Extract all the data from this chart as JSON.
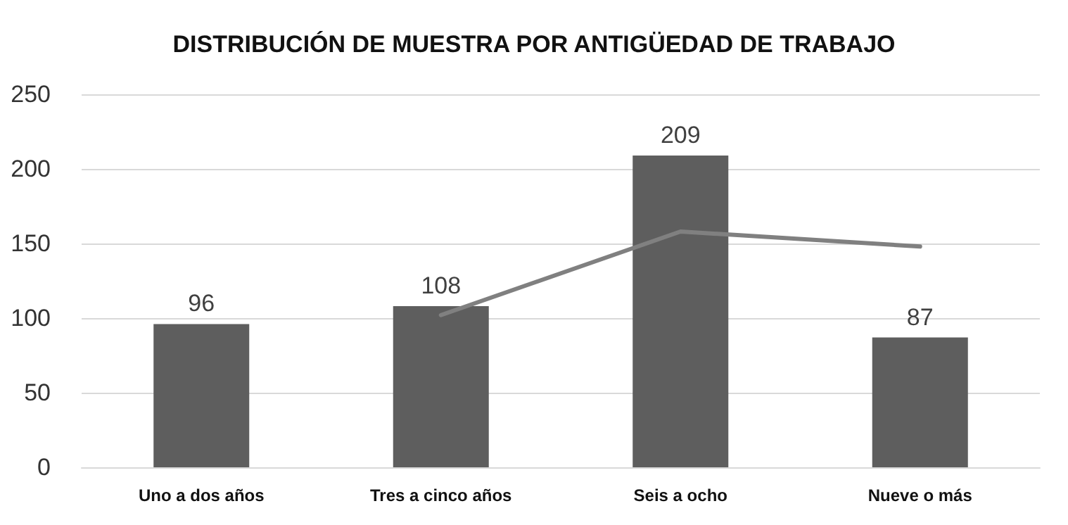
{
  "chart_data": {
    "type": "bar",
    "title": "DISTRIBUCIÓN DE MUESTRA POR ANTIGÜEDAD DE TRABAJO",
    "categories": [
      "Uno a dos años",
      "Tres a cinco años",
      "Seis a ocho",
      "Nueve o más"
    ],
    "series": [
      {
        "color": "#5e5e5e",
        "values": [
          96,
          108,
          209,
          87
        ],
        "data_labels": true
      },
      {
        "type": "line",
        "color": "#808080",
        "values": [
          null,
          102,
          158,
          148
        ],
        "marker": "none",
        "line_style": "solid"
      }
    ],
    "ylim": [
      0,
      250
    ],
    "yticks": [
      0,
      50,
      100,
      150,
      200,
      250
    ],
    "grid": "y"
  }
}
